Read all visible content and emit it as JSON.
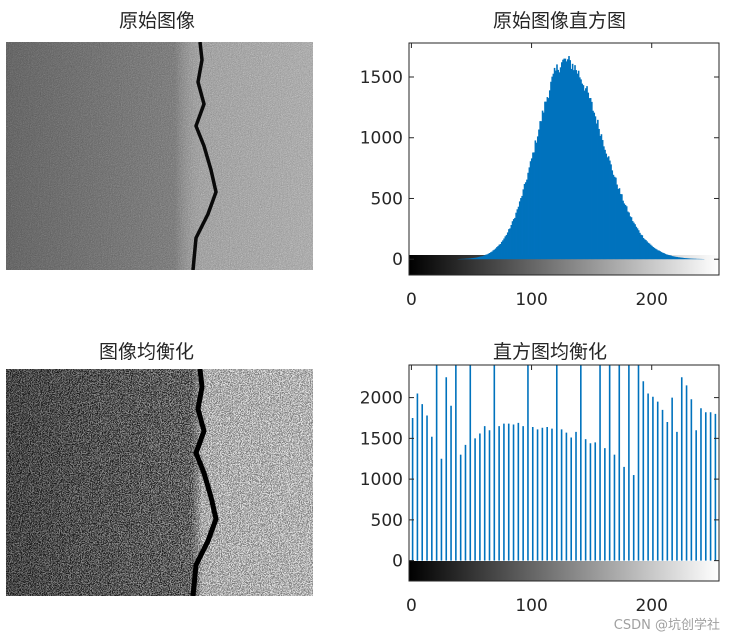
{
  "titles": {
    "original_image": "原始图像",
    "original_histogram": "原始图像直方图",
    "equalized_image": "图像均衡化",
    "equalized_histogram": "直方图均衡化"
  },
  "watermark": "CSDN @坑创学社",
  "colors": {
    "hist_fill": "#0072bd",
    "axis": "#262626"
  },
  "chart_data": [
    {
      "type": "bar",
      "title": "原始图像直方图",
      "xlim": [
        -2,
        256
      ],
      "ylim": [
        -130,
        1780
      ],
      "xticks": [
        0,
        100,
        200
      ],
      "yticks": [
        0,
        500,
        1000,
        1500
      ],
      "distribution": {
        "shape": "gaussian",
        "peak_x": 128,
        "peak_y": 1690,
        "sigma_left": 24,
        "sigma_right": 31,
        "x_range": [
          0,
          255
        ]
      },
      "samples": [
        {
          "x": 0,
          "y": 0
        },
        {
          "x": 50,
          "y": 8
        },
        {
          "x": 80,
          "y": 80
        },
        {
          "x": 100,
          "y": 520
        },
        {
          "x": 110,
          "y": 1100
        },
        {
          "x": 120,
          "y": 1550
        },
        {
          "x": 128,
          "y": 1690
        },
        {
          "x": 140,
          "y": 1520
        },
        {
          "x": 160,
          "y": 1050
        },
        {
          "x": 180,
          "y": 480
        },
        {
          "x": 200,
          "y": 110
        },
        {
          "x": 220,
          "y": 15
        },
        {
          "x": 255,
          "y": 0
        }
      ]
    },
    {
      "type": "bar",
      "title": "直方图均衡化",
      "xlim": [
        -2,
        256
      ],
      "ylim": [
        -250,
        2400
      ],
      "xticks": [
        0,
        100,
        200
      ],
      "yticks": [
        0,
        500,
        1000,
        1500,
        2000
      ],
      "bars": [
        {
          "x": 1,
          "y": 1750
        },
        {
          "x": 5,
          "y": 2050
        },
        {
          "x": 9,
          "y": 1920
        },
        {
          "x": 13,
          "y": 1780
        },
        {
          "x": 17,
          "y": 1520
        },
        {
          "x": 21,
          "y": 2400
        },
        {
          "x": 25,
          "y": 1250
        },
        {
          "x": 29,
          "y": 2250
        },
        {
          "x": 33,
          "y": 1900
        },
        {
          "x": 37,
          "y": 2400
        },
        {
          "x": 41,
          "y": 1300
        },
        {
          "x": 45,
          "y": 1420
        },
        {
          "x": 49,
          "y": 2400
        },
        {
          "x": 53,
          "y": 1500
        },
        {
          "x": 57,
          "y": 1560
        },
        {
          "x": 61,
          "y": 1650
        },
        {
          "x": 65,
          "y": 1600
        },
        {
          "x": 69,
          "y": 2400
        },
        {
          "x": 73,
          "y": 1650
        },
        {
          "x": 77,
          "y": 1680
        },
        {
          "x": 81,
          "y": 1680
        },
        {
          "x": 85,
          "y": 1670
        },
        {
          "x": 89,
          "y": 1690
        },
        {
          "x": 93,
          "y": 1650
        },
        {
          "x": 97,
          "y": 2400
        },
        {
          "x": 101,
          "y": 1640
        },
        {
          "x": 105,
          "y": 1610
        },
        {
          "x": 109,
          "y": 1630
        },
        {
          "x": 113,
          "y": 1640
        },
        {
          "x": 117,
          "y": 1620
        },
        {
          "x": 121,
          "y": 2400
        },
        {
          "x": 125,
          "y": 1610
        },
        {
          "x": 129,
          "y": 1570
        },
        {
          "x": 133,
          "y": 1510
        },
        {
          "x": 137,
          "y": 1580
        },
        {
          "x": 141,
          "y": 2400
        },
        {
          "x": 145,
          "y": 1490
        },
        {
          "x": 149,
          "y": 1440
        },
        {
          "x": 153,
          "y": 1450
        },
        {
          "x": 157,
          "y": 2400
        },
        {
          "x": 161,
          "y": 1380
        },
        {
          "x": 165,
          "y": 2400
        },
        {
          "x": 169,
          "y": 1300
        },
        {
          "x": 173,
          "y": 2400
        },
        {
          "x": 177,
          "y": 1150
        },
        {
          "x": 181,
          "y": 2400
        },
        {
          "x": 185,
          "y": 1050
        },
        {
          "x": 189,
          "y": 2400
        },
        {
          "x": 193,
          "y": 2200
        },
        {
          "x": 197,
          "y": 2050
        },
        {
          "x": 201,
          "y": 2010
        },
        {
          "x": 205,
          "y": 1950
        },
        {
          "x": 209,
          "y": 1850
        },
        {
          "x": 213,
          "y": 1700
        },
        {
          "x": 217,
          "y": 2000
        },
        {
          "x": 221,
          "y": 1580
        },
        {
          "x": 225,
          "y": 2250
        },
        {
          "x": 229,
          "y": 2150
        },
        {
          "x": 233,
          "y": 1980
        },
        {
          "x": 237,
          "y": 1600
        },
        {
          "x": 241,
          "y": 1870
        },
        {
          "x": 245,
          "y": 1820
        },
        {
          "x": 249,
          "y": 1820
        },
        {
          "x": 253,
          "y": 1800
        }
      ]
    }
  ]
}
